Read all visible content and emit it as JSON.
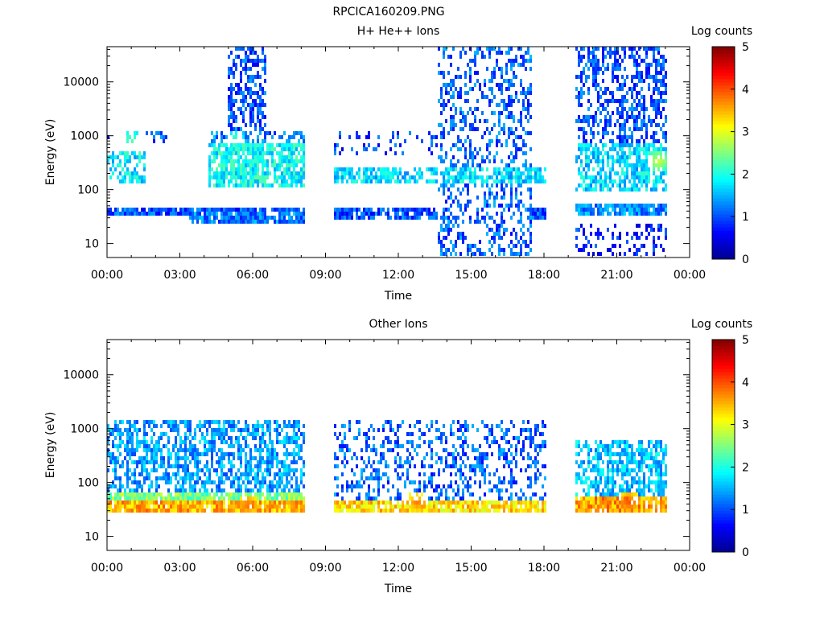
{
  "page_title": "RPCICA160209.PNG",
  "colors": {
    "background": "#ffffff",
    "axis": "#000000",
    "colormap": [
      "#00008f",
      "#0000ff",
      "#0080ff",
      "#00ffff",
      "#80ff80",
      "#ffff00",
      "#ff8000",
      "#ff0000",
      "#800000"
    ]
  },
  "chart_data": [
    {
      "type": "heatmap",
      "title": "H+ He++ Ions",
      "xlabel": "Time",
      "ylabel": "Energy (eV)",
      "x_ticks": [
        "00:00",
        "03:00",
        "06:00",
        "09:00",
        "12:00",
        "15:00",
        "18:00",
        "21:00",
        "00:00"
      ],
      "xlim_hours": [
        0,
        24
      ],
      "y_scale": "log",
      "y_ticks": [
        "10",
        "100",
        "1000",
        "10000"
      ],
      "ylim": [
        5.5,
        45000
      ],
      "colorbar": {
        "label": "Log counts",
        "range": [
          0,
          5
        ],
        "ticks": [
          "0",
          "1",
          "2",
          "3",
          "4",
          "5"
        ]
      },
      "data_gaps_hours": [
        [
          8.2,
          9.3
        ],
        [
          18.1,
          19.3
        ]
      ],
      "bands": [
        {
          "t": [
            0.0,
            8.2
          ],
          "e": [
            32,
            45
          ],
          "log_counts": 1.0,
          "density": 0.95
        },
        {
          "t": [
            3.4,
            8.2
          ],
          "e": [
            25,
            40
          ],
          "log_counts": 1.2,
          "density": 0.9
        },
        {
          "t": [
            0.0,
            1.6
          ],
          "e": [
            120,
            550
          ],
          "log_counts": 1.8,
          "density": 0.55
        },
        {
          "t": [
            0.0,
            2.8
          ],
          "e": [
            700,
            1200
          ],
          "log_counts": 1.0,
          "density": 0.3
        },
        {
          "t": [
            4.2,
            8.2
          ],
          "e": [
            110,
            700
          ],
          "log_counts": 1.9,
          "density": 0.85
        },
        {
          "t": [
            4.3,
            8.2
          ],
          "e": [
            700,
            1200
          ],
          "log_counts": 1.2,
          "density": 0.45
        },
        {
          "t": [
            5.0,
            6.6
          ],
          "e": [
            1200,
            42000
          ],
          "log_counts": 1.0,
          "density": 0.55
        },
        {
          "t": [
            9.3,
            18.1
          ],
          "e": [
            30,
            45
          ],
          "log_counts": 1.0,
          "density": 0.85
        },
        {
          "t": [
            9.3,
            18.1
          ],
          "e": [
            140,
            260
          ],
          "log_counts": 1.7,
          "density": 0.75
        },
        {
          "t": [
            9.3,
            14.5
          ],
          "e": [
            400,
            1200
          ],
          "log_counts": 0.9,
          "density": 0.25
        },
        {
          "t": [
            13.6,
            17.5
          ],
          "e": [
            6,
            42000
          ],
          "log_counts": 1.1,
          "density": 0.4
        },
        {
          "t": [
            19.3,
            23.1
          ],
          "e": [
            32,
            55
          ],
          "log_counts": 1.3,
          "density": 0.95
        },
        {
          "t": [
            19.3,
            23.1
          ],
          "e": [
            100,
            700
          ],
          "log_counts": 1.7,
          "density": 0.75
        },
        {
          "t": [
            19.3,
            23.1
          ],
          "e": [
            700,
            42000
          ],
          "log_counts": 1.0,
          "density": 0.55
        },
        {
          "t": [
            19.3,
            23.1
          ],
          "e": [
            6,
            25
          ],
          "log_counts": 0.8,
          "density": 0.3
        }
      ],
      "hotspots": [
        {
          "t": 1.0,
          "e": 850,
          "log_counts": 2.4
        },
        {
          "t": 5.3,
          "e": 850,
          "log_counts": 2.3
        },
        {
          "t": 11.5,
          "e": 200,
          "log_counts": 2.1
        },
        {
          "t": 22.7,
          "e": 340,
          "log_counts": 2.9
        }
      ]
    },
    {
      "type": "heatmap",
      "title": "Other Ions",
      "xlabel": "Time",
      "ylabel": "Energy (eV)",
      "x_ticks": [
        "00:00",
        "03:00",
        "06:00",
        "09:00",
        "12:00",
        "15:00",
        "18:00",
        "21:00",
        "00:00"
      ],
      "xlim_hours": [
        0,
        24
      ],
      "y_scale": "log",
      "y_ticks": [
        "10",
        "100",
        "1000",
        "10000"
      ],
      "ylim": [
        5.5,
        45000
      ],
      "colorbar": {
        "label": "Log counts",
        "range": [
          0,
          5
        ],
        "ticks": [
          "0",
          "1",
          "2",
          "3",
          "4",
          "5"
        ]
      },
      "data_gaps_hours": [
        [
          8.2,
          9.3
        ],
        [
          18.1,
          19.3
        ]
      ],
      "bands": [
        {
          "t": [
            0.0,
            8.2
          ],
          "e": [
            30,
            50
          ],
          "log_counts": 3.5,
          "density": 1.0
        },
        {
          "t": [
            0.0,
            8.2
          ],
          "e": [
            50,
            70
          ],
          "log_counts": 2.5,
          "density": 0.95
        },
        {
          "t": [
            0.0,
            8.2
          ],
          "e": [
            70,
            1500
          ],
          "log_counts": 1.4,
          "density": 0.6
        },
        {
          "t": [
            9.3,
            18.1
          ],
          "e": [
            30,
            50
          ],
          "log_counts": 3.3,
          "density": 0.9
        },
        {
          "t": [
            9.3,
            18.1
          ],
          "e": [
            50,
            1500
          ],
          "log_counts": 1.1,
          "density": 0.35
        },
        {
          "t": [
            19.3,
            23.1
          ],
          "e": [
            30,
            55
          ],
          "log_counts": 3.6,
          "density": 1.0
        },
        {
          "t": [
            19.3,
            23.1
          ],
          "e": [
            55,
            600
          ],
          "log_counts": 1.6,
          "density": 0.7
        }
      ],
      "hotspots": [
        {
          "t": 5.8,
          "e": 38,
          "log_counts": 3.9
        },
        {
          "t": 21.5,
          "e": 42,
          "log_counts": 4.0
        },
        {
          "t": 12.8,
          "e": 42,
          "log_counts": 3.8
        }
      ]
    }
  ]
}
